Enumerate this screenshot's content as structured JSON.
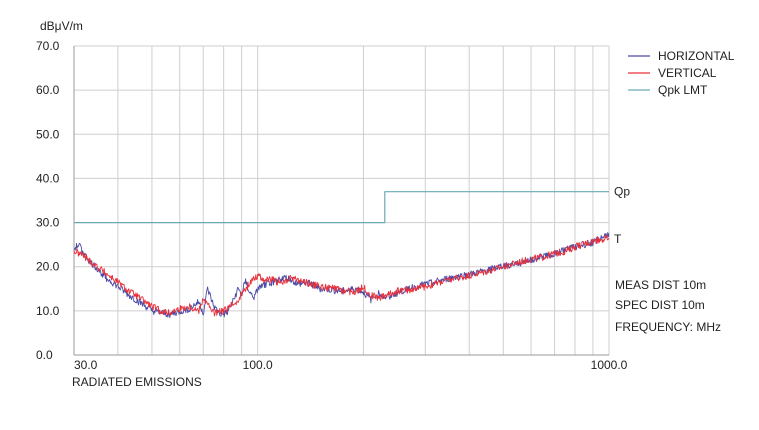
{
  "chart_data": {
    "type": "line",
    "ylabel": "dBμV/m",
    "xlabel": "RADIATED EMISSIONS",
    "x_scale": "log",
    "xlim": [
      30,
      1000
    ],
    "ylim": [
      0,
      70
    ],
    "grid": true,
    "legend_position": "top-right",
    "x_ticks": [
      {
        "value": 30,
        "label": "30.0"
      },
      {
        "value": 100,
        "label": "100.0"
      },
      {
        "value": 1000,
        "label": "1000.0"
      }
    ],
    "y_ticks": [
      {
        "value": 0,
        "label": "0.0"
      },
      {
        "value": 10,
        "label": "10.0"
      },
      {
        "value": 20,
        "label": "20.0"
      },
      {
        "value": 30,
        "label": "30.0"
      },
      {
        "value": 40,
        "label": "40.0"
      },
      {
        "value": 50,
        "label": "50.0"
      },
      {
        "value": 60,
        "label": "60.0"
      },
      {
        "value": 70,
        "label": "70.0"
      }
    ],
    "series": [
      {
        "name": "HORIZONTAL",
        "color": "#4a4aa8",
        "x": [
          30,
          31,
          32,
          33,
          35,
          37,
          40,
          43,
          46,
          50,
          53,
          56,
          60,
          64,
          68,
          70,
          72,
          75,
          78,
          80,
          82,
          85,
          88,
          90,
          92,
          95,
          98,
          100,
          105,
          110,
          115,
          120,
          125,
          130,
          140,
          150,
          160,
          170,
          180,
          190,
          200,
          210,
          220,
          230,
          250,
          270,
          300,
          330,
          360,
          400,
          450,
          500,
          550,
          600,
          650,
          700,
          750,
          800,
          850,
          900,
          950,
          1000
        ],
        "y": [
          24,
          25,
          23,
          21.5,
          19.5,
          17.5,
          15.5,
          13.5,
          12,
          10,
          9.5,
          9.2,
          9.8,
          10.5,
          12,
          9.5,
          15,
          11,
          9.3,
          9.2,
          9.6,
          12,
          15,
          13.5,
          17,
          14,
          13,
          15,
          16,
          16.5,
          17.2,
          17.5,
          17,
          16,
          16.5,
          15,
          14.8,
          14.5,
          14.6,
          15,
          14.2,
          12.5,
          14,
          13,
          14,
          15.2,
          16,
          16.8,
          17.6,
          18.2,
          19.2,
          20.2,
          20.8,
          21.5,
          22.5,
          23,
          24,
          24.5,
          25,
          25.5,
          26.5,
          27.5
        ]
      },
      {
        "name": "VERTICAL",
        "color": "#e8303a",
        "x": [
          30,
          31,
          32,
          33,
          35,
          37,
          40,
          43,
          46,
          50,
          53,
          56,
          60,
          64,
          68,
          70,
          72,
          75,
          78,
          80,
          82,
          85,
          88,
          90,
          92,
          95,
          98,
          100,
          105,
          110,
          115,
          120,
          125,
          130,
          140,
          150,
          160,
          170,
          180,
          190,
          200,
          210,
          220,
          230,
          250,
          270,
          300,
          330,
          360,
          400,
          450,
          500,
          550,
          600,
          650,
          700,
          750,
          800,
          850,
          900,
          950,
          1000
        ],
        "y": [
          23.5,
          23,
          22.5,
          21.5,
          20,
          18.5,
          16.5,
          14.5,
          13,
          11,
          10,
          9.5,
          10.5,
          11,
          10,
          13,
          11.5,
          9.5,
          9.8,
          10,
          10.5,
          11.5,
          12.5,
          14,
          14.5,
          16.5,
          17.5,
          18,
          17,
          17,
          16.5,
          16.5,
          17.5,
          17,
          16.2,
          15.5,
          15.2,
          14.8,
          14.5,
          14.2,
          15.5,
          13.5,
          13,
          13.5,
          14.5,
          14.8,
          15.5,
          16.5,
          17.2,
          18,
          19,
          20,
          21,
          21.8,
          22.2,
          23,
          23.5,
          24.5,
          25.2,
          25.8,
          26.2,
          26.5
        ]
      },
      {
        "name": "Qpk LMT",
        "color": "#6aaab4",
        "x": [
          30,
          230,
          230,
          1000
        ],
        "y": [
          30,
          30,
          37,
          37
        ]
      }
    ],
    "annotations": {
      "qp_label": "Qp",
      "t_label": "T",
      "meas_dist": "MEAS DIST 10m",
      "spec_dist": "SPEC DIST 10m",
      "frequency": "FREQUENCY: MHz"
    }
  }
}
